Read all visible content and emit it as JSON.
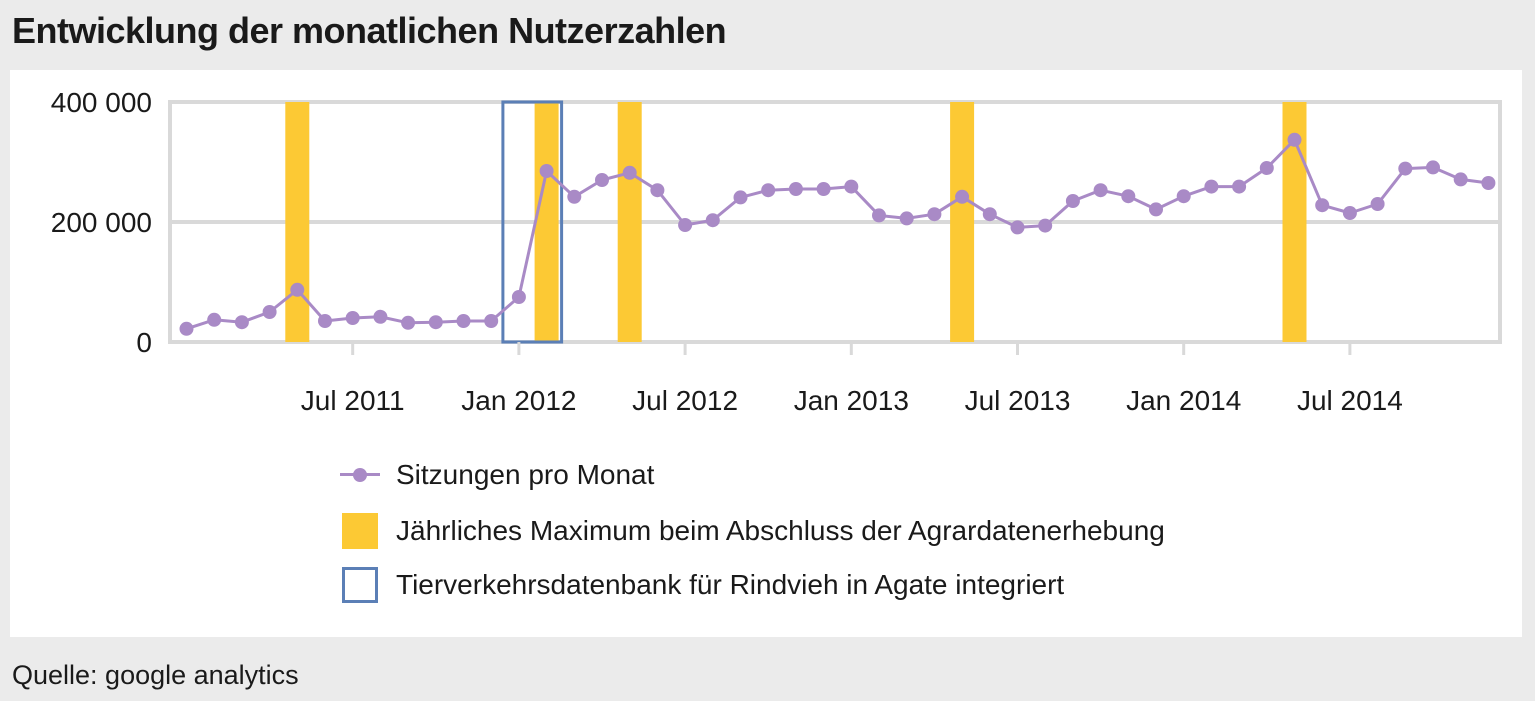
{
  "title": "Entwicklung der monatlichen Nutzerzahlen",
  "source": "Quelle: google analytics",
  "colors": {
    "line": "#a98ac6",
    "highlight": "#fcc934",
    "outline": "#5b7fb6",
    "grid": "#e6e6e6",
    "axis": "#d9d9d9",
    "text": "#1a1a1a"
  },
  "chart_data": {
    "type": "line",
    "title": "Entwicklung der monatlichen Nutzerzahlen",
    "xlabel": "",
    "ylabel": "",
    "ylim": [
      0,
      400000
    ],
    "y_ticks": [
      0,
      200000,
      400000
    ],
    "y_tick_labels": [
      "0",
      "200 000",
      "400 000"
    ],
    "x_tick_index": [
      6,
      12,
      18,
      24,
      30,
      36,
      42
    ],
    "x_tick_labels": [
      "Jul 2011",
      "Jan 2012",
      "Jul 2012",
      "Jan 2013",
      "Jul 2013",
      "Jan 2014",
      "Jul 2014"
    ],
    "series": [
      {
        "name": "Sitzungen pro Monat",
        "start": "Jan 2011",
        "values": [
          22000,
          37000,
          33000,
          50000,
          87000,
          35000,
          40000,
          42000,
          32000,
          33000,
          35000,
          35000,
          75000,
          285000,
          242000,
          270000,
          282000,
          253000,
          195000,
          203000,
          241000,
          253000,
          255000,
          255000,
          259000,
          211000,
          206000,
          213000,
          242000,
          213000,
          191000,
          194000,
          235000,
          253000,
          243000,
          221000,
          243000,
          259000,
          259000,
          290000,
          337000,
          228000,
          215000,
          230000,
          289000,
          291000,
          271000,
          265000
        ]
      }
    ],
    "highlight_bars": {
      "label": "Jährliches Maximum beim Abschluss der Agrardatenerhebung",
      "index": [
        4,
        13,
        16,
        28,
        40
      ]
    },
    "outline_box": {
      "label": "Tierverkehrsdatenbank für Rindvieh in Agate integriert",
      "index_range": [
        12,
        13
      ]
    }
  },
  "legend": {
    "items": [
      {
        "label": "Sitzungen pro Monat"
      },
      {
        "label": "Jährliches Maximum beim Abschluss der Agrardatenerhebung"
      },
      {
        "label": "Tierverkehrsdatenbank für Rindvieh in Agate integriert"
      }
    ]
  }
}
